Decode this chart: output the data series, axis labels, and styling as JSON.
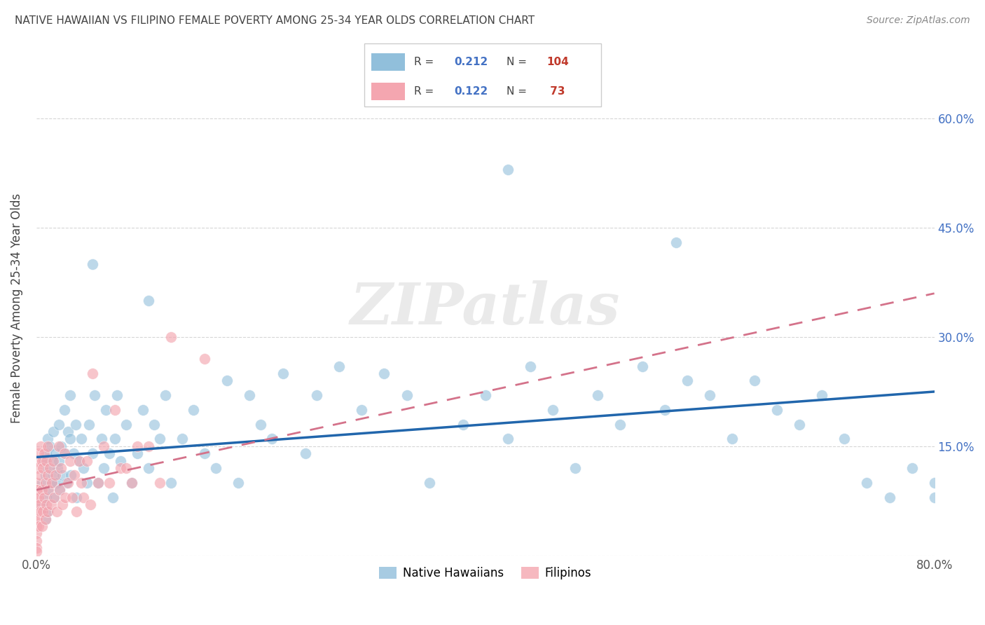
{
  "title": "NATIVE HAWAIIAN VS FILIPINO FEMALE POVERTY AMONG 25-34 YEAR OLDS CORRELATION CHART",
  "source": "Source: ZipAtlas.com",
  "ylabel": "Female Poverty Among 25-34 Year Olds",
  "xlim": [
    0,
    0.8
  ],
  "ylim": [
    0,
    0.68
  ],
  "ytick_positions": [
    0.0,
    0.15,
    0.3,
    0.45,
    0.6
  ],
  "ytick_labels": [
    "",
    "15.0%",
    "30.0%",
    "45.0%",
    "60.0%"
  ],
  "watermark": "ZIPatlas",
  "r1": "0.212",
  "n1": "104",
  "r2": "0.122",
  "n2": "73",
  "blue_color": "#91bfdb",
  "pink_color": "#f4a6b0",
  "trend_blue": "#2166ac",
  "trend_pink": "#d4728a",
  "background": "#ffffff",
  "grid_color": "#bbbbbb",
  "title_color": "#444444",
  "source_color": "#888888",
  "axis_label_color": "#444444",
  "right_tick_color": "#4472c4",
  "legend_text_color": "#444444",
  "legend_r_color": "#4472c4",
  "legend_n_color": "#c0392b",
  "nh_x": [
    0.005,
    0.005,
    0.007,
    0.008,
    0.008,
    0.009,
    0.009,
    0.01,
    0.01,
    0.01,
    0.01,
    0.012,
    0.013,
    0.014,
    0.015,
    0.015,
    0.016,
    0.017,
    0.018,
    0.019,
    0.02,
    0.02,
    0.021,
    0.022,
    0.023,
    0.025,
    0.026,
    0.027,
    0.028,
    0.03,
    0.03,
    0.031,
    0.033,
    0.035,
    0.036,
    0.038,
    0.04,
    0.042,
    0.045,
    0.047,
    0.05,
    0.052,
    0.055,
    0.058,
    0.06,
    0.062,
    0.065,
    0.068,
    0.07,
    0.072,
    0.075,
    0.08,
    0.085,
    0.09,
    0.095,
    0.1,
    0.105,
    0.11,
    0.115,
    0.12,
    0.13,
    0.14,
    0.15,
    0.16,
    0.17,
    0.18,
    0.19,
    0.2,
    0.21,
    0.22,
    0.24,
    0.25,
    0.27,
    0.29,
    0.31,
    0.33,
    0.35,
    0.38,
    0.4,
    0.42,
    0.44,
    0.46,
    0.48,
    0.5,
    0.52,
    0.54,
    0.56,
    0.58,
    0.6,
    0.62,
    0.64,
    0.66,
    0.68,
    0.7,
    0.72,
    0.74,
    0.76,
    0.78,
    0.8,
    0.8,
    0.57,
    0.42,
    0.05,
    0.1
  ],
  "nh_y": [
    0.1,
    0.07,
    0.13,
    0.05,
    0.11,
    0.14,
    0.08,
    0.16,
    0.12,
    0.06,
    0.09,
    0.15,
    0.1,
    0.13,
    0.11,
    0.17,
    0.08,
    0.14,
    0.1,
    0.12,
    0.18,
    0.13,
    0.09,
    0.15,
    0.11,
    0.2,
    0.14,
    0.1,
    0.17,
    0.16,
    0.22,
    0.11,
    0.14,
    0.18,
    0.08,
    0.13,
    0.16,
    0.12,
    0.1,
    0.18,
    0.14,
    0.22,
    0.1,
    0.16,
    0.12,
    0.2,
    0.14,
    0.08,
    0.16,
    0.22,
    0.13,
    0.18,
    0.1,
    0.14,
    0.2,
    0.12,
    0.18,
    0.16,
    0.22,
    0.1,
    0.16,
    0.2,
    0.14,
    0.12,
    0.24,
    0.1,
    0.22,
    0.18,
    0.16,
    0.25,
    0.14,
    0.22,
    0.26,
    0.2,
    0.25,
    0.22,
    0.1,
    0.18,
    0.22,
    0.16,
    0.26,
    0.2,
    0.12,
    0.22,
    0.18,
    0.26,
    0.2,
    0.24,
    0.22,
    0.16,
    0.24,
    0.2,
    0.18,
    0.22,
    0.16,
    0.1,
    0.08,
    0.12,
    0.08,
    0.1,
    0.43,
    0.53,
    0.4,
    0.35
  ],
  "fil_x": [
    0.0,
    0.0,
    0.0,
    0.0,
    0.0,
    0.0,
    0.0,
    0.0,
    0.0,
    0.0,
    0.0,
    0.0,
    0.001,
    0.001,
    0.001,
    0.002,
    0.002,
    0.002,
    0.003,
    0.003,
    0.004,
    0.004,
    0.005,
    0.005,
    0.005,
    0.006,
    0.006,
    0.007,
    0.007,
    0.008,
    0.008,
    0.009,
    0.009,
    0.01,
    0.01,
    0.01,
    0.011,
    0.012,
    0.013,
    0.014,
    0.015,
    0.016,
    0.017,
    0.018,
    0.02,
    0.021,
    0.022,
    0.023,
    0.025,
    0.026,
    0.028,
    0.03,
    0.032,
    0.034,
    0.036,
    0.038,
    0.04,
    0.042,
    0.045,
    0.048,
    0.05,
    0.055,
    0.06,
    0.065,
    0.07,
    0.075,
    0.08,
    0.085,
    0.09,
    0.1,
    0.11,
    0.12,
    0.15
  ],
  "fil_y": [
    0.13,
    0.1,
    0.09,
    0.08,
    0.07,
    0.06,
    0.05,
    0.04,
    0.03,
    0.02,
    0.01,
    0.005,
    0.12,
    0.09,
    0.05,
    0.14,
    0.08,
    0.04,
    0.11,
    0.07,
    0.15,
    0.06,
    0.13,
    0.09,
    0.04,
    0.12,
    0.06,
    0.14,
    0.08,
    0.1,
    0.05,
    0.13,
    0.07,
    0.15,
    0.11,
    0.06,
    0.09,
    0.12,
    0.07,
    0.1,
    0.13,
    0.08,
    0.11,
    0.06,
    0.15,
    0.09,
    0.12,
    0.07,
    0.14,
    0.08,
    0.1,
    0.13,
    0.08,
    0.11,
    0.06,
    0.13,
    0.1,
    0.08,
    0.13,
    0.07,
    0.25,
    0.1,
    0.15,
    0.1,
    0.2,
    0.12,
    0.12,
    0.1,
    0.15,
    0.15,
    0.1,
    0.3,
    0.27
  ]
}
